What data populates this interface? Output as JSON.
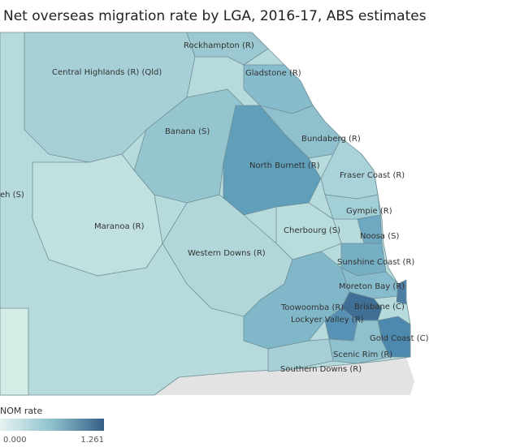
{
  "title": "Net overseas migration rate by LGA, 2016-17, ABS estimates",
  "regions": [
    {
      "label": "Rockhampton (R)"
    },
    {
      "label": "Central Highlands (R) (Qld)"
    },
    {
      "label": "Gladstone (R)"
    },
    {
      "label": "Banana (S)"
    },
    {
      "label": "Bundaberg (R)"
    },
    {
      "label": "North Burnett (R)"
    },
    {
      "label": "Fraser Coast (R)"
    },
    {
      "label": "eh (S)"
    },
    {
      "label": "Gympie (R)"
    },
    {
      "label": "Maranoa (R)"
    },
    {
      "label": "Cherbourg (S)"
    },
    {
      "label": "Noosa (S)"
    },
    {
      "label": "Western Downs (R)"
    },
    {
      "label": "Sunshine Coast (R)"
    },
    {
      "label": "Moreton Bay (R)"
    },
    {
      "label": "Toowoomba (R)"
    },
    {
      "label": "Brisbane (C)"
    },
    {
      "label": "Lockyer Valley (R)"
    },
    {
      "label": "Gold Coast (C)"
    },
    {
      "label": "Scenic Rim (R)"
    },
    {
      "label": "Southern Downs (R)"
    }
  ],
  "legend": {
    "title": "NOM rate",
    "min": "0.000",
    "max": "1.261"
  }
}
